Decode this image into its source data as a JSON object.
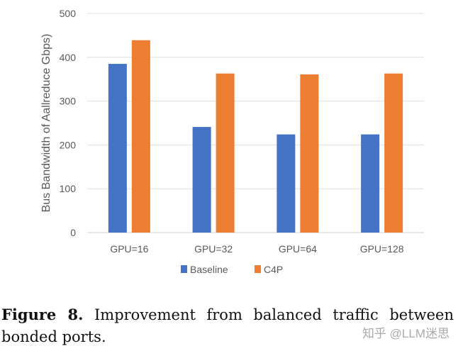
{
  "chart_data": {
    "type": "bar",
    "categories": [
      "GPU=16",
      "GPU=32",
      "GPU=64",
      "GPU=128"
    ],
    "series": [
      {
        "name": "Baseline",
        "values": [
          385,
          241,
          224,
          224
        ],
        "color": "#4472C4"
      },
      {
        "name": "C4P",
        "values": [
          439,
          363,
          361,
          363
        ],
        "color": "#ED7D31"
      }
    ],
    "xlabel": "",
    "ylabel": "Bus Bandwidth of Aallreduce Gbps)",
    "ylim": [
      0,
      500
    ],
    "yticks": [
      0,
      100,
      200,
      300,
      400,
      500
    ],
    "grid": true,
    "legend": "bottom"
  },
  "caption": {
    "label": "Figure 8.",
    "text": "Improvement from balanced traffic between bonded ports."
  },
  "watermark": "知乎 @LLM迷思"
}
